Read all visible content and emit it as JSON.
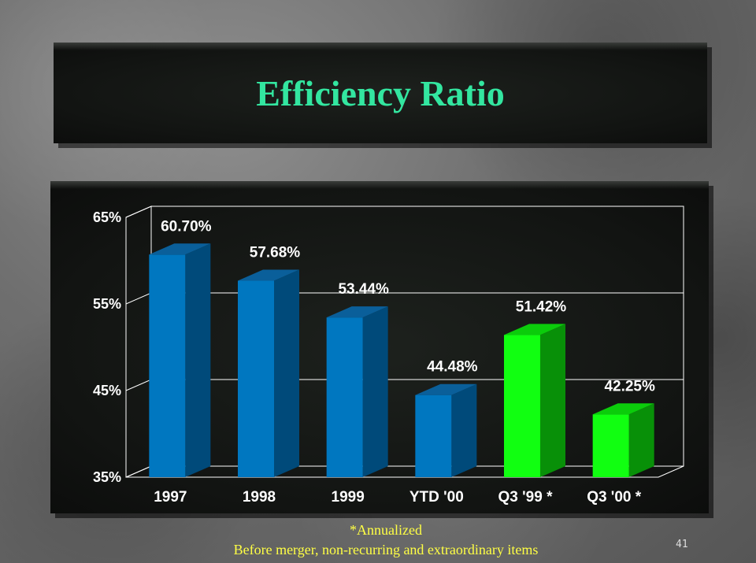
{
  "slide": {
    "title": "Efficiency Ratio",
    "footnote_1": "*Annualized",
    "footnote_2": "Before merger, non-recurring and extraordinary items",
    "page_number": "41"
  },
  "colors": {
    "title": "#33e6a0",
    "bar_blue": "#0077c0",
    "bar_green": "#11ff11",
    "text": "#ffffff",
    "footnote": "#ffff44"
  },
  "chart_data": {
    "type": "bar",
    "categories": [
      "1997",
      "1998",
      "1999",
      "YTD '00",
      "Q3 '99 *",
      "Q3 '00 *"
    ],
    "values": [
      60.7,
      57.68,
      53.44,
      44.48,
      51.42,
      42.25
    ],
    "value_labels": [
      "60.70%",
      "57.68%",
      "53.44%",
      "44.48%",
      "51.42%",
      "42.25%"
    ],
    "bar_colors": [
      "blue",
      "blue",
      "blue",
      "blue",
      "green",
      "green"
    ],
    "ylim": [
      35,
      65
    ],
    "yticks": [
      35,
      45,
      55,
      65
    ],
    "ytick_labels": [
      "35%",
      "45%",
      "55%",
      "65%"
    ],
    "grid": true,
    "style": "3d"
  }
}
